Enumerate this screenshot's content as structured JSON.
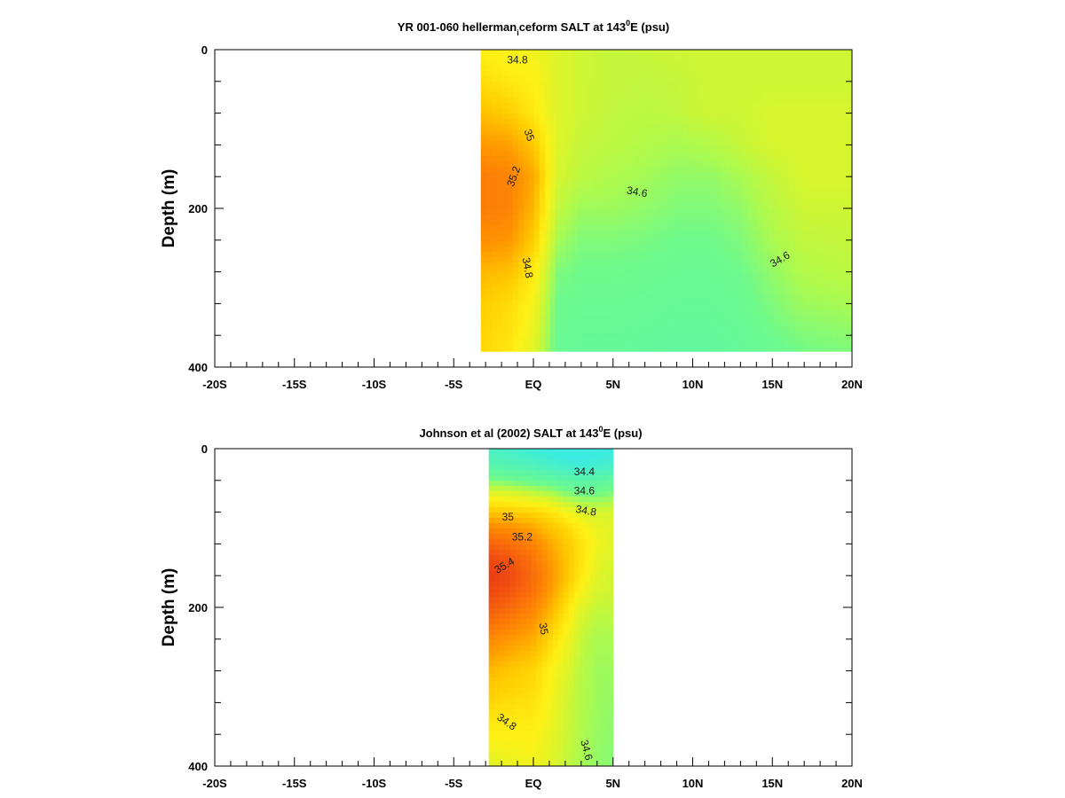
{
  "chart_data": [
    {
      "type": "heatmap",
      "title_pre": "YR 001-060 hellerman",
      "title_sub": "i",
      "title_mid": "ceform SALT at 143",
      "title_sup": "0",
      "title_post": "E (psu)",
      "xlabel": "",
      "ylabel": "Depth (m)",
      "xlim": [
        -20,
        20
      ],
      "ylim": [
        400,
        0
      ],
      "x_ticks": [
        -20,
        -15,
        -10,
        -5,
        0,
        5,
        10,
        15,
        20
      ],
      "x_tick_labels": [
        "-20S",
        "-15S",
        "-10S",
        "-5S",
        "EQ",
        "5N",
        "10N",
        "15N",
        "20N"
      ],
      "y_ticks": [
        0,
        200,
        400
      ],
      "y_tick_labels": [
        "0",
        "200",
        "400"
      ],
      "data_extent": {
        "lat": [
          -3.3,
          20
        ],
        "depth": [
          0,
          380
        ]
      },
      "field": {
        "lat": [
          -3.3,
          -1.5,
          0,
          1.5,
          3,
          5,
          7,
          9,
          11,
          13,
          15,
          17,
          20
        ],
        "depth": [
          0,
          40,
          80,
          120,
          160,
          200,
          240,
          280,
          320,
          360,
          380
        ],
        "salinity": [
          [
            34.85,
            34.82,
            34.8,
            34.74,
            34.7,
            34.68,
            34.69,
            34.7,
            34.7,
            34.7,
            34.7,
            34.7,
            34.7
          ],
          [
            34.92,
            34.88,
            34.85,
            34.74,
            34.7,
            34.68,
            34.67,
            34.68,
            34.7,
            34.7,
            34.7,
            34.7,
            34.7
          ],
          [
            35.02,
            34.98,
            34.88,
            34.74,
            34.7,
            34.67,
            34.66,
            34.67,
            34.7,
            34.7,
            34.72,
            34.72,
            34.72
          ],
          [
            35.15,
            35.12,
            35.0,
            34.74,
            34.68,
            34.66,
            34.64,
            34.62,
            34.64,
            34.68,
            34.72,
            34.72,
            34.72
          ],
          [
            35.25,
            35.22,
            35.1,
            34.72,
            34.66,
            34.63,
            34.61,
            34.58,
            34.58,
            34.62,
            34.68,
            34.72,
            34.72
          ],
          [
            35.25,
            35.22,
            35.05,
            34.68,
            34.6,
            34.6,
            34.58,
            34.55,
            34.55,
            34.58,
            34.65,
            34.7,
            34.7
          ],
          [
            35.18,
            35.15,
            34.98,
            34.62,
            34.55,
            34.55,
            34.54,
            34.52,
            34.52,
            34.55,
            34.62,
            34.67,
            34.68
          ],
          [
            35.05,
            35.02,
            34.88,
            34.55,
            34.52,
            34.52,
            34.51,
            34.5,
            34.5,
            34.52,
            34.58,
            34.64,
            34.66
          ],
          [
            34.98,
            34.93,
            34.82,
            34.52,
            34.5,
            34.5,
            34.49,
            34.48,
            34.48,
            34.5,
            34.55,
            34.6,
            34.62
          ],
          [
            34.95,
            34.9,
            34.78,
            34.5,
            34.48,
            34.48,
            34.47,
            34.46,
            34.46,
            34.48,
            34.52,
            34.55,
            34.57
          ],
          [
            34.94,
            34.88,
            34.76,
            34.49,
            34.47,
            34.47,
            34.46,
            34.45,
            34.45,
            34.47,
            34.5,
            34.53,
            34.55
          ]
        ]
      },
      "contour_labels": [
        {
          "text": "34.8",
          "lat": -1.0,
          "depth": 14,
          "angle": 0
        },
        {
          "text": "35",
          "lat": -0.3,
          "depth": 108,
          "angle": 70
        },
        {
          "text": "35.2",
          "lat": -1.2,
          "depth": 160,
          "angle": -70
        },
        {
          "text": "34.6",
          "lat": 6.5,
          "depth": 180,
          "angle": 10
        },
        {
          "text": "34.8",
          "lat": -0.4,
          "depth": 275,
          "angle": 80
        },
        {
          "text": "34.6",
          "lat": 15.5,
          "depth": 265,
          "angle": -30
        }
      ]
    },
    {
      "type": "heatmap",
      "title_pre": "Johnson et al (2002) SALT at 143",
      "title_sup": "0",
      "title_post": "E (psu)",
      "xlabel": "",
      "ylabel": "Depth (m)",
      "xlim": [
        -20,
        20
      ],
      "ylim": [
        400,
        0
      ],
      "x_ticks": [
        -20,
        -15,
        -10,
        -5,
        0,
        5,
        10,
        15,
        20
      ],
      "x_tick_labels": [
        "-20S",
        "-15S",
        "-10S",
        "-5S",
        "EQ",
        "5N",
        "10N",
        "15N",
        "20N"
      ],
      "y_ticks": [
        0,
        200,
        400
      ],
      "y_tick_labels": [
        "0",
        "200",
        "400"
      ],
      "data_extent": {
        "lat": [
          -2.8,
          5
        ],
        "depth": [
          0,
          400
        ]
      },
      "field": {
        "lat": [
          -2.8,
          -1.5,
          0,
          1,
          2,
          3,
          4,
          5
        ],
        "depth": [
          0,
          20,
          40,
          60,
          80,
          100,
          120,
          140,
          160,
          180,
          200,
          240,
          280,
          320,
          360,
          400
        ],
        "salinity": [
          [
            34.3,
            34.28,
            34.22,
            34.18,
            34.16,
            34.16,
            34.18,
            34.2
          ],
          [
            34.38,
            34.36,
            34.32,
            34.28,
            34.25,
            34.22,
            34.25,
            34.28
          ],
          [
            34.55,
            34.52,
            34.48,
            34.45,
            34.42,
            34.4,
            34.42,
            34.45
          ],
          [
            34.8,
            34.78,
            34.72,
            34.68,
            34.6,
            34.55,
            34.55,
            34.58
          ],
          [
            35.0,
            34.98,
            34.95,
            34.9,
            34.82,
            34.75,
            34.72,
            34.72
          ],
          [
            35.2,
            35.18,
            35.1,
            35.02,
            34.95,
            34.85,
            34.78,
            34.75
          ],
          [
            35.35,
            35.3,
            35.22,
            35.1,
            35.0,
            34.9,
            34.8,
            34.75
          ],
          [
            35.45,
            35.4,
            35.28,
            35.15,
            35.02,
            34.9,
            34.78,
            34.72
          ],
          [
            35.5,
            35.45,
            35.3,
            35.18,
            35.02,
            34.88,
            34.75,
            34.7
          ],
          [
            35.45,
            35.4,
            35.28,
            35.15,
            34.98,
            34.82,
            34.72,
            34.7
          ],
          [
            35.38,
            35.32,
            35.22,
            35.08,
            34.92,
            34.75,
            34.68,
            34.68
          ],
          [
            35.2,
            35.15,
            35.08,
            34.95,
            34.82,
            34.68,
            34.62,
            34.62
          ],
          [
            35.05,
            35.0,
            34.95,
            34.85,
            34.75,
            34.65,
            34.6,
            34.6
          ],
          [
            34.95,
            34.92,
            34.9,
            34.82,
            34.72,
            34.64,
            34.6,
            34.58
          ],
          [
            34.85,
            34.85,
            34.85,
            34.78,
            34.7,
            34.63,
            34.59,
            34.57
          ],
          [
            34.75,
            34.78,
            34.8,
            34.75,
            34.68,
            34.62,
            34.58,
            34.56
          ]
        ]
      },
      "contour_labels": [
        {
          "text": "34.4",
          "lat": 3.2,
          "depth": 30,
          "angle": 0
        },
        {
          "text": "34.6",
          "lat": 3.2,
          "depth": 54,
          "angle": 0
        },
        {
          "text": "34.8",
          "lat": 3.3,
          "depth": 79,
          "angle": 10
        },
        {
          "text": "35",
          "lat": -1.6,
          "depth": 87,
          "angle": 0
        },
        {
          "text": "35.2",
          "lat": -0.7,
          "depth": 112,
          "angle": 0
        },
        {
          "text": "35.4",
          "lat": -1.8,
          "depth": 148,
          "angle": -30
        },
        {
          "text": "35",
          "lat": 0.6,
          "depth": 227,
          "angle": 80
        },
        {
          "text": "34.8",
          "lat": -1.7,
          "depth": 345,
          "angle": 35
        },
        {
          "text": "34.6",
          "lat": 3.3,
          "depth": 380,
          "angle": 75
        }
      ]
    }
  ]
}
